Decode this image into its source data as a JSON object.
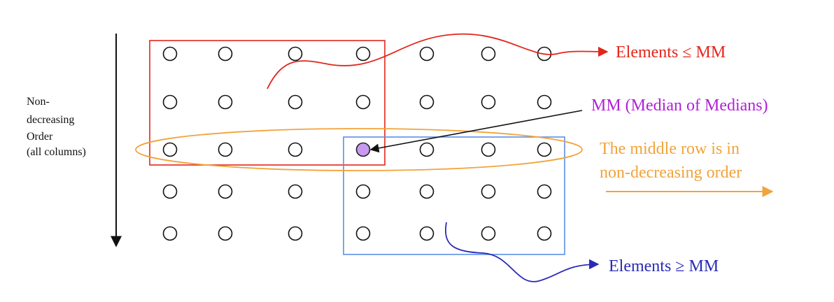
{
  "labels": {
    "order_line1": "Non-",
    "order_line2": "decreasing",
    "order_line3": "Order",
    "order_line4": "(all columns)",
    "elements_le": "Elements ≤ MM",
    "mm": "MM (Median of Medians)",
    "middle_row_line1": "The middle row is in",
    "middle_row_line2": "non-decreasing order",
    "elements_ge": "Elements ≥ MM"
  },
  "grid": {
    "rows": 5,
    "columns": 7,
    "highlight": {
      "row": 3,
      "column": 4
    }
  },
  "colors": {
    "red": "#e3261b",
    "blue": "#5b8fe6",
    "dark_blue": "#2a2ab8",
    "orange": "#f2a33a",
    "purple": "#b020d8",
    "highlight_fill": "#c79af0",
    "black": "#111111"
  }
}
